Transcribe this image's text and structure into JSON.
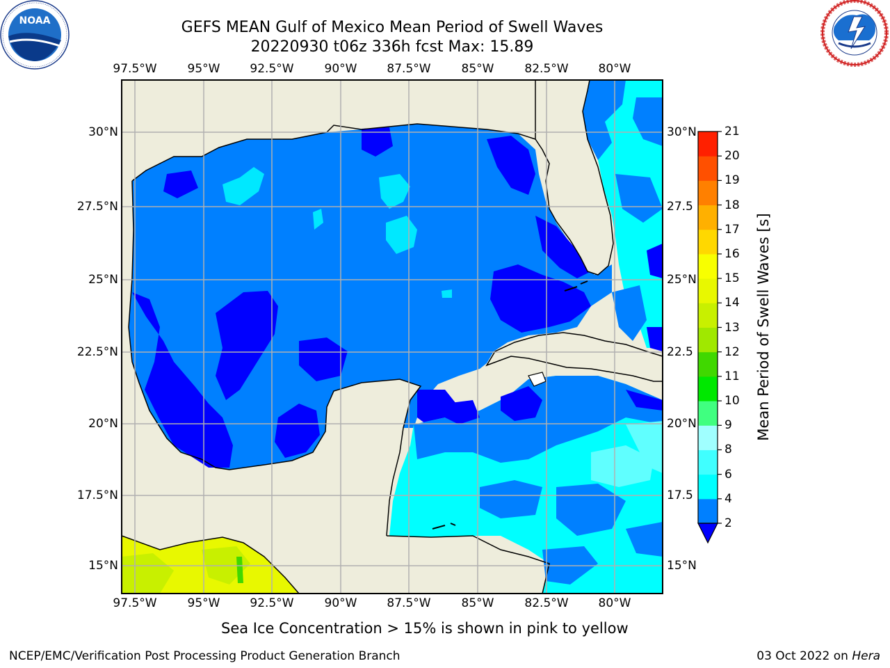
{
  "title": {
    "line1": "GEFS MEAN Gulf of Mexico Mean Period of Swell Waves",
    "line2": "20220930 t06z 336h fcst   Max: 15.89"
  },
  "logos": {
    "noaa_text": "NOAA",
    "noaa_ring_text": "NATIONAL OCEANIC AND ATMOSPHERIC ADMINISTRATION · U.S. DEPARTMENT OF COMMERCE",
    "nws_ring_text": "NATIONAL WEATHER SERVICE"
  },
  "map": {
    "lon_ticks": [
      "97.5°W",
      "95°W",
      "92.5°W",
      "90°W",
      "87.5°W",
      "85°W",
      "82.5°W",
      "80°W"
    ],
    "lat_ticks_left": [
      "30°N",
      "27.5°N",
      "25°N",
      "22.5°N",
      "20°N",
      "17.5°N",
      "15°N"
    ],
    "lat_ticks_right": [
      "30°N",
      "27.5",
      "25°N",
      "22.5",
      "20°N",
      "17.5",
      "15°N"
    ],
    "colors": {
      "land": "#eeeddc",
      "ocean": "#0080ff",
      "grid": "#b0b0b0"
    }
  },
  "colorbar": {
    "label": "Mean Period of Swell Waves [s]",
    "ticks": [
      "2",
      "4",
      "6",
      "8",
      "9",
      "10",
      "11",
      "12",
      "13",
      "14",
      "15",
      "16",
      "17",
      "18",
      "19",
      "20",
      "21"
    ],
    "colors": [
      "#0000ff",
      "#0080ff",
      "#00ffff",
      "#40ffff",
      "#a0ffff",
      "#40ff80",
      "#00e800",
      "#40d800",
      "#a0e800",
      "#c8f000",
      "#e8f800",
      "#f8ff00",
      "#ffd800",
      "#ffb000",
      "#ff8000",
      "#ff5000",
      "#ff2000",
      "#ff0000"
    ]
  },
  "note": "Sea Ice Concentration > 15% is shown in pink to yellow",
  "footer": {
    "left": "NCEP/EMC/Verification Post Processing Product Generation Branch",
    "right_prefix": "03 Oct 2022 on ",
    "right_machine": "Hera"
  }
}
